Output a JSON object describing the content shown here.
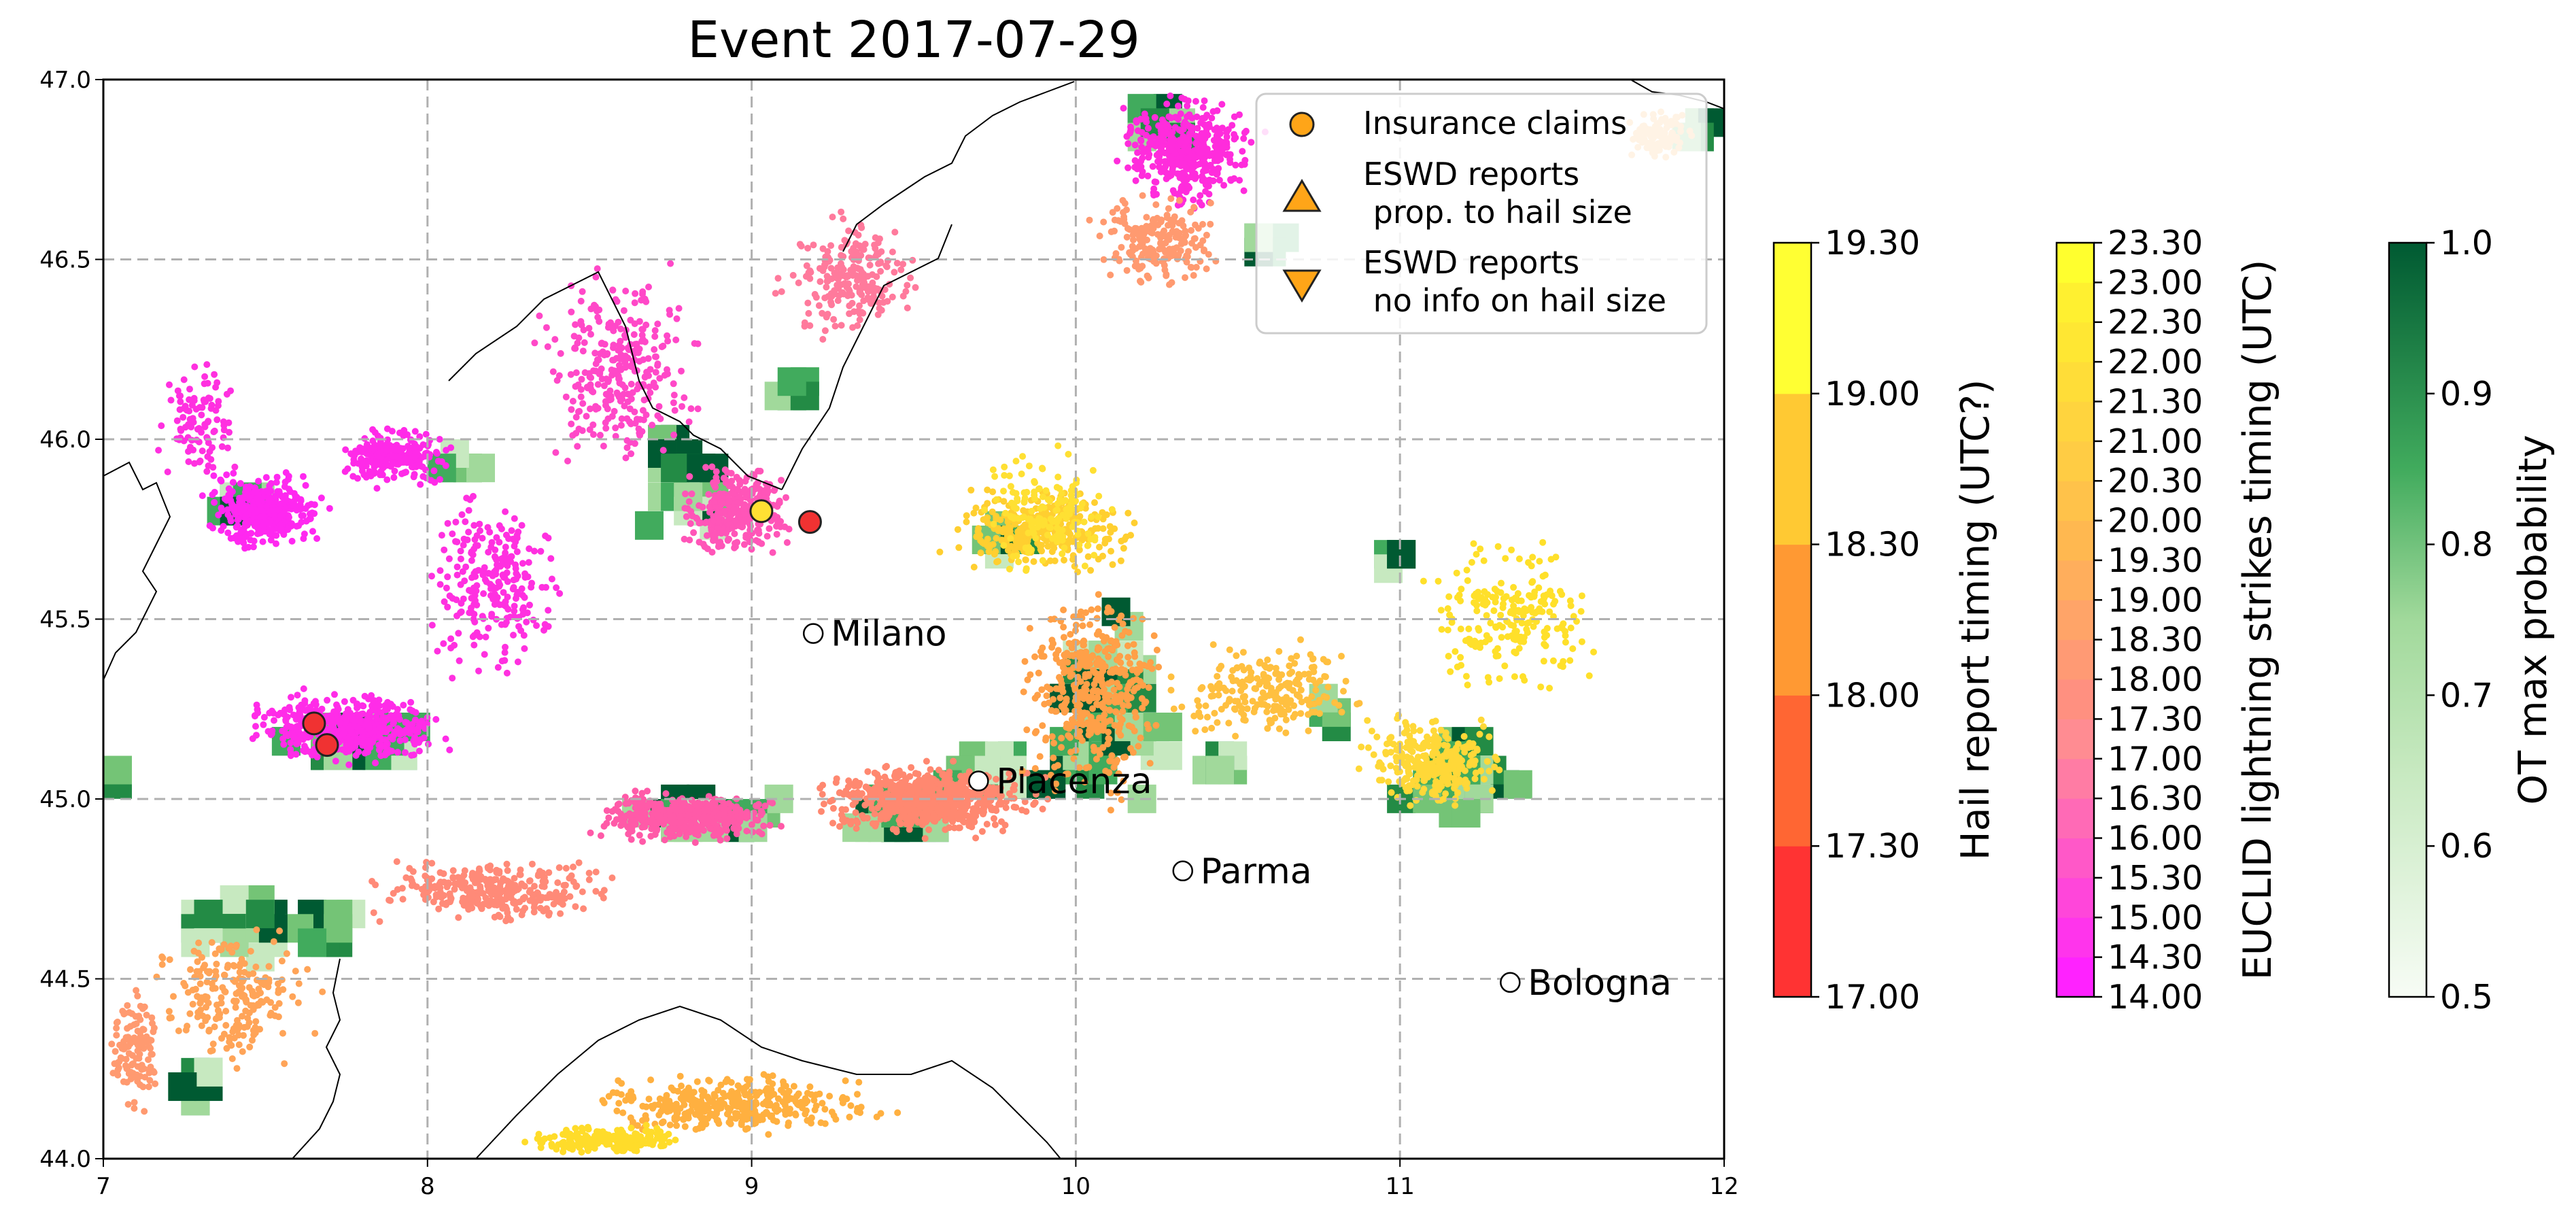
{
  "title": "Event 2017-07-29",
  "map": {
    "x_ticks": [
      "7",
      "8",
      "9",
      "10",
      "11",
      "12"
    ],
    "y_ticks": [
      "44.0",
      "44.5",
      "45.0",
      "45.5",
      "46.0",
      "46.5",
      "47.0"
    ],
    "lon_range": [
      7,
      12
    ],
    "lat_range": [
      44.0,
      47.0
    ],
    "grid": true,
    "cities": [
      {
        "name": "Milano",
        "lon": 9.19,
        "lat": 45.46
      },
      {
        "name": "Piacenza",
        "lon": 9.7,
        "lat": 45.05
      },
      {
        "name": "Parma",
        "lon": 10.33,
        "lat": 44.8
      },
      {
        "name": "Bologna",
        "lon": 11.34,
        "lat": 44.49
      }
    ],
    "claims": [
      {
        "lon": 9.03,
        "lat": 45.8,
        "color": "#ffe033"
      },
      {
        "lon": 9.18,
        "lat": 45.77,
        "color": "#f03232"
      },
      {
        "lon": 7.65,
        "lat": 45.21,
        "color": "#f03232"
      },
      {
        "lon": 7.69,
        "lat": 45.15,
        "color": "#f03232"
      }
    ]
  },
  "legend": {
    "items": [
      {
        "label": "Insurance claims"
      },
      {
        "label": "ESWD reports",
        "label2": " prop. to hail size"
      },
      {
        "label": "ESWD reports",
        "label2": " no info on hail size"
      }
    ],
    "marker_color": "#ffa518"
  },
  "colorbars": [
    {
      "label": "Hail report timing (UTC?)",
      "ticks": [
        "17.00",
        "17.30",
        "18.00",
        "18.30",
        "19.00",
        "19.30"
      ],
      "colors": [
        "#ff3333",
        "#ff6633",
        "#ff9933",
        "#ffc933",
        "#ffff33"
      ]
    },
    {
      "label": "EUCLID lightning strikes timing (UTC)",
      "ticks": [
        "14.00",
        "14.30",
        "15.00",
        "15.30",
        "16.00",
        "16.30",
        "17.00",
        "17.30",
        "18.00",
        "18.30",
        "19.00",
        "19.30",
        "20.00",
        "20.30",
        "21.00",
        "21.30",
        "22.00",
        "22.30",
        "23.00",
        "23.30"
      ],
      "colors": [
        "#ff22ff",
        "#ff34ec",
        "#ff46da",
        "#ff58c8",
        "#ff6ab6",
        "#ff7ca4",
        "#ff8c92",
        "#ff9080",
        "#ff9a74",
        "#ffa468",
        "#ffae5c",
        "#ffb850",
        "#ffc24a",
        "#ffcc44",
        "#ffd43e",
        "#ffdd38",
        "#ffe733",
        "#fff030",
        "#ffff2e"
      ]
    },
    {
      "label": "OT max probability",
      "ticks": [
        "0.5",
        "0.6",
        "0.7",
        "0.8",
        "0.9",
        "1.0"
      ],
      "colors": [
        "#f7fcf5",
        "#c7e9c0",
        "#a1d99b",
        "#74c476",
        "#41ab5d",
        "#238b45",
        "#005a32"
      ]
    }
  ]
}
